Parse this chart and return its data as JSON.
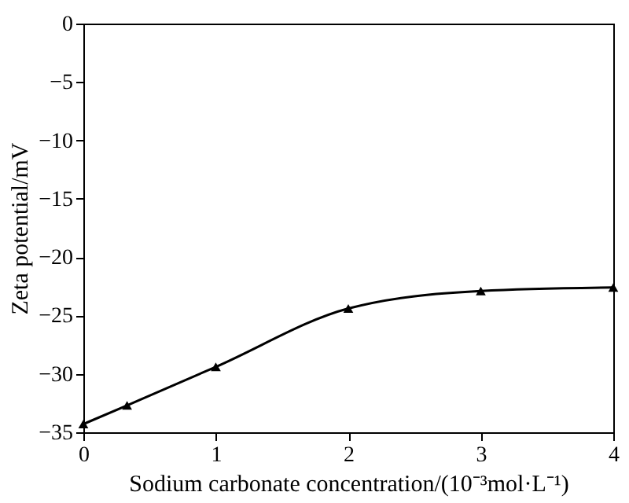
{
  "chart_data": {
    "type": "line",
    "xlabel": "Sodium carbonate concentration/(10⁻³mol·L⁻¹)",
    "ylabel": "Zeta potential/mV",
    "x": [
      0,
      0.33,
      1,
      2,
      3,
      4
    ],
    "series": [
      {
        "color": "#000000",
        "values": [
          -34.3,
          -32.7,
          -29.4,
          -24.4,
          -22.9,
          -22.6
        ]
      }
    ],
    "xlim": [
      0,
      4
    ],
    "xticks": [
      0,
      1,
      2,
      3,
      4
    ],
    "ylim": [
      -35,
      0
    ],
    "yticks": [
      0,
      -5,
      -10,
      -15,
      -20,
      -25,
      -30,
      -35
    ],
    "marker": "triangle",
    "line_style": "solid",
    "grid": false
  }
}
